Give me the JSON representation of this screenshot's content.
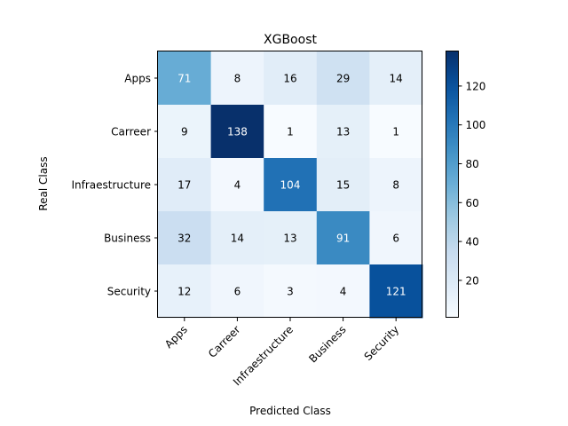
{
  "chart_data": {
    "type": "heatmap",
    "title": "XGBoost",
    "xlabel": "Predicted Class",
    "ylabel": "Real Class",
    "x_categories": [
      "Apps",
      "Carreer",
      "Infraestructure",
      "Business",
      "Security"
    ],
    "y_categories": [
      "Apps",
      "Carreer",
      "Infraestructure",
      "Business",
      "Security"
    ],
    "values": [
      [
        71,
        8,
        16,
        29,
        14
      ],
      [
        9,
        138,
        1,
        13,
        1
      ],
      [
        17,
        4,
        104,
        15,
        8
      ],
      [
        32,
        14,
        13,
        91,
        6
      ],
      [
        12,
        6,
        3,
        4,
        121
      ]
    ],
    "colormap": "Blues",
    "color_range": [
      1,
      138
    ],
    "colorbar_ticks": [
      20,
      40,
      60,
      80,
      100,
      120
    ],
    "xtick_rotation_deg": 45,
    "grid": false
  }
}
